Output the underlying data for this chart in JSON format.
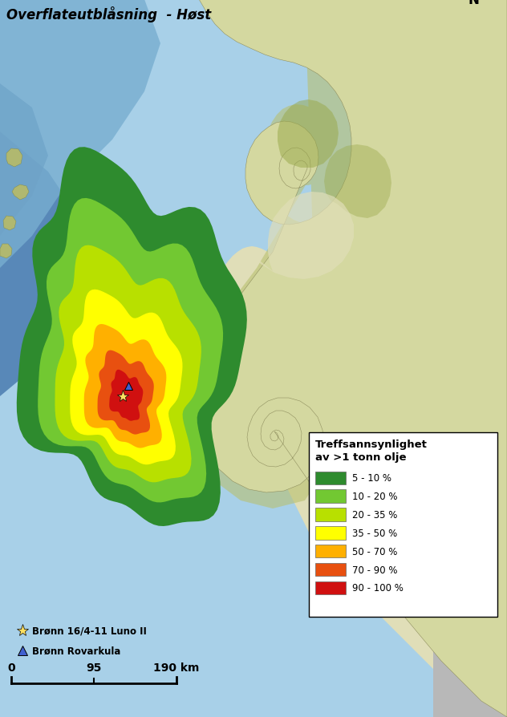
{
  "title": "Overflateutblåsning  - Høst",
  "title_fontsize": 12,
  "legend_title": "Treffsannsynlighet\nav >1 tonn olje",
  "legend_entries": [
    {
      "label": "5 - 10 %",
      "color": "#2e8b2e"
    },
    {
      "label": "10 - 20 %",
      "color": "#72c832"
    },
    {
      "label": "20 - 35 %",
      "color": "#b8e000"
    },
    {
      "label": "35 - 50 %",
      "color": "#ffff00"
    },
    {
      "label": "50 - 70 %",
      "color": "#ffb000"
    },
    {
      "label": "70 - 90 %",
      "color": "#e85010"
    },
    {
      "label": "90 - 100 %",
      "color": "#d01010"
    }
  ],
  "marker_well1_label": "Brønn 16/4-11 Luno II",
  "marker_well1_color": "#ffe060",
  "marker_well2_label": "Brønn Rovarkula",
  "marker_well2_color": "#4060d0",
  "fig_width": 6.32,
  "fig_height": 8.95,
  "ocean_shallow": "#a8d0e8",
  "ocean_deep": "#5888b8",
  "ocean_mid": "#78aed0",
  "land_main": "#d4d8a0",
  "land_highland": "#c8c888",
  "land_lowland": "#e0deb8",
  "land_coast": "#b8c070",
  "land_dark": "#98a848"
}
